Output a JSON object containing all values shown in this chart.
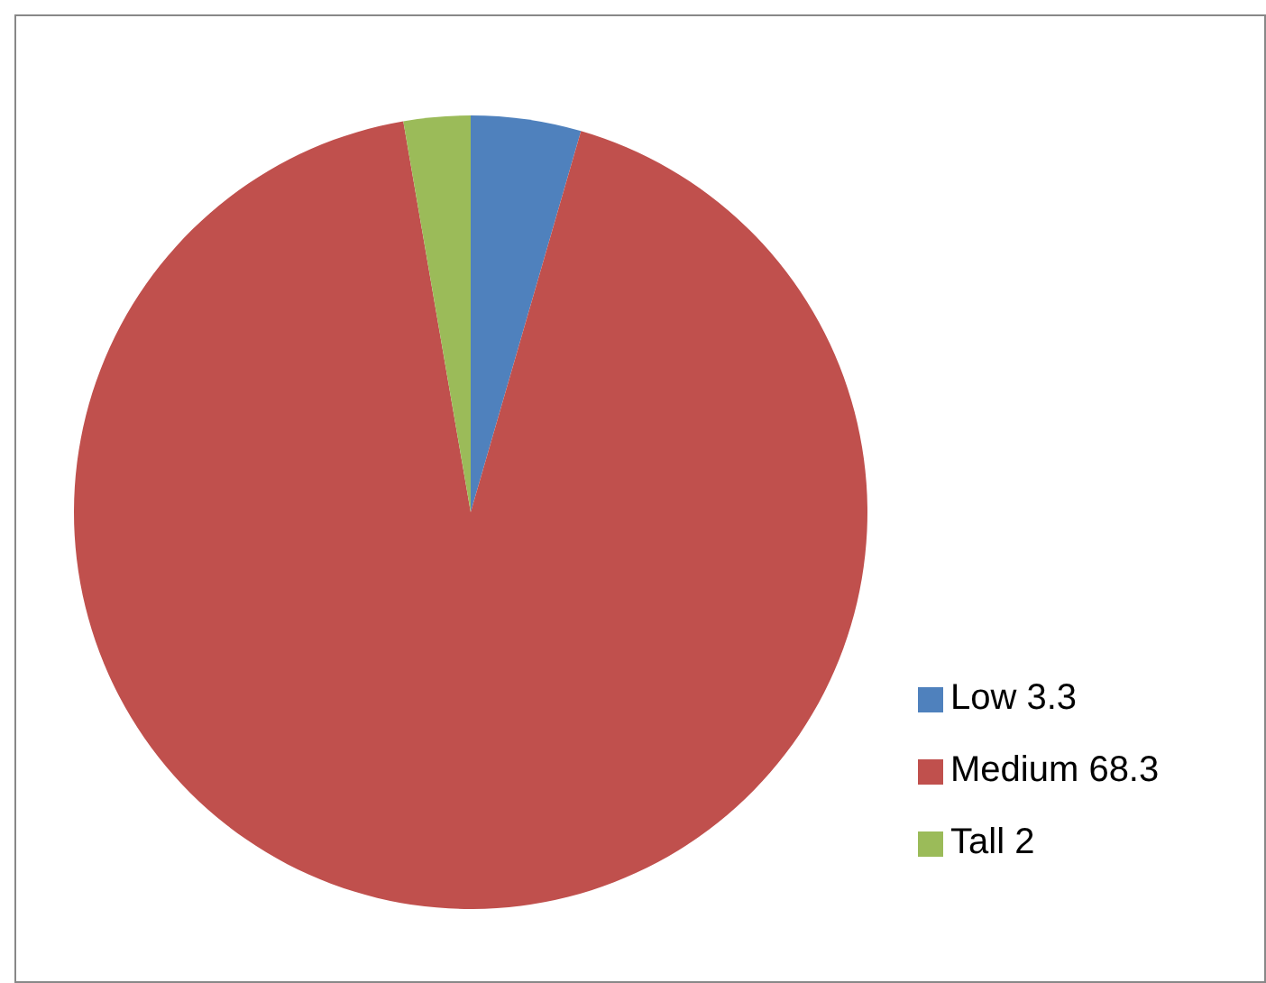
{
  "chart_data": {
    "type": "pie",
    "categories": [
      "Low 3.3",
      "Medium 68.3",
      "Tall 2"
    ],
    "values": [
      3.3,
      68.3,
      2
    ],
    "colors": [
      "#4f81bd",
      "#c0504d",
      "#9bbb59"
    ],
    "legend": "right"
  }
}
